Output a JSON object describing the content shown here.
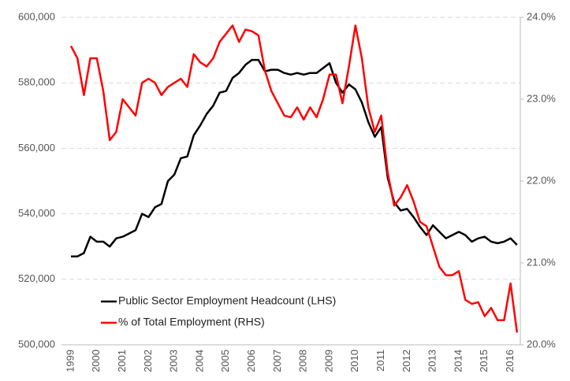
{
  "chart_data": {
    "type": "line",
    "categories": [
      "1999",
      null,
      null,
      null,
      "2000",
      null,
      null,
      null,
      "2001",
      null,
      null,
      null,
      "2002",
      null,
      null,
      null,
      "2003",
      null,
      null,
      null,
      "2004",
      null,
      null,
      null,
      "2005",
      null,
      null,
      null,
      "2006",
      null,
      null,
      null,
      "2007",
      null,
      null,
      null,
      "2008",
      null,
      null,
      null,
      "2009",
      null,
      null,
      null,
      "2010",
      null,
      null,
      null,
      "2011",
      null,
      null,
      null,
      "2012",
      null,
      null,
      null,
      "2013",
      null,
      null,
      null,
      "2014",
      null,
      null,
      null,
      "2015",
      null,
      null,
      null,
      "2016",
      null
    ],
    "series": [
      {
        "name": "Public Sector Employment Headcount (LHS)",
        "color": "#000000",
        "axis": "y",
        "values": [
          527000,
          527000,
          528000,
          533000,
          531500,
          531500,
          530000,
          532500,
          533000,
          534000,
          535000,
          540000,
          539000,
          542000,
          543000,
          550000,
          552000,
          557000,
          557500,
          564000,
          567000,
          570500,
          573000,
          577000,
          577500,
          581500,
          583000,
          585500,
          587000,
          587000,
          583500,
          584000,
          584000,
          583000,
          582500,
          583000,
          582500,
          583000,
          583000,
          584500,
          586000,
          580000,
          577000,
          579500,
          578000,
          574000,
          568000,
          563500,
          566500,
          551000,
          543500,
          541000,
          541500,
          539000,
          536000,
          533500,
          536500,
          534500,
          532500,
          533500,
          534500,
          533500,
          531500,
          532500,
          533000,
          531500,
          531000,
          531500,
          532500,
          530500
        ]
      },
      {
        "name": "% of Total Employment (RHS)",
        "color": "#ff0000",
        "axis": "y2",
        "values": [
          23.65,
          23.5,
          23.05,
          23.5,
          23.5,
          23.1,
          22.5,
          22.6,
          23.0,
          22.9,
          22.8,
          23.2,
          23.25,
          23.2,
          23.05,
          23.15,
          23.2,
          23.25,
          23.15,
          23.55,
          23.45,
          23.4,
          23.5,
          23.7,
          23.8,
          23.9,
          23.7,
          23.85,
          23.83,
          23.78,
          23.35,
          23.1,
          22.95,
          22.8,
          22.78,
          22.9,
          22.75,
          22.9,
          22.78,
          23.0,
          23.3,
          23.3,
          22.95,
          23.4,
          23.9,
          23.5,
          22.9,
          22.6,
          22.8,
          22.1,
          21.7,
          21.8,
          21.95,
          21.75,
          21.5,
          21.45,
          21.2,
          20.95,
          20.85,
          20.85,
          20.9,
          20.55,
          20.5,
          20.52,
          20.35,
          20.45,
          20.3,
          20.3,
          20.75,
          20.15
        ]
      }
    ],
    "ylim": [
      500000,
      600000
    ],
    "yticks": [
      {
        "value": 500000,
        "label": "500,000"
      },
      {
        "value": 520000,
        "label": "520,000"
      },
      {
        "value": 540000,
        "label": "540,000"
      },
      {
        "value": 560000,
        "label": "560,000"
      },
      {
        "value": 580000,
        "label": "580,000"
      },
      {
        "value": 600000,
        "label": "600,000"
      }
    ],
    "y2lim": [
      20,
      24
    ],
    "y2ticks": [
      {
        "value": 20,
        "label": "20.0%"
      },
      {
        "value": 21,
        "label": "21.0%"
      },
      {
        "value": 22,
        "label": "22.0%"
      },
      {
        "value": 23,
        "label": "23.0%"
      },
      {
        "value": 24,
        "label": "24.0%"
      }
    ],
    "grid": true,
    "legend": "lower left"
  }
}
